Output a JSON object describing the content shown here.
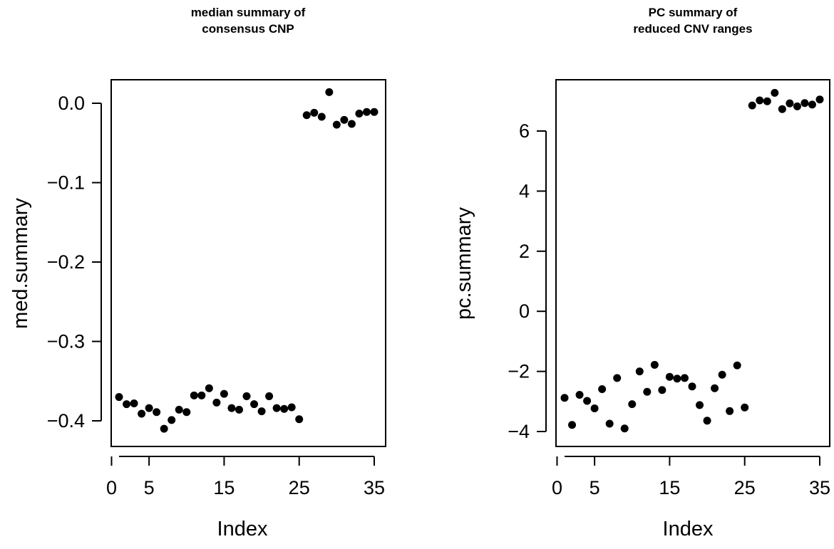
{
  "chart_data": [
    {
      "type": "scatter",
      "title_lines": [
        "median summary of",
        "consensus CNP"
      ],
      "xlabel": "Index",
      "ylabel": "med.summary",
      "xlim": [
        1,
        35
      ],
      "ylim": [
        -0.41,
        0.014
      ],
      "x_ticks": [
        0,
        5,
        15,
        25,
        35
      ],
      "y_ticks": [
        -0.4,
        -0.3,
        -0.2,
        -0.1,
        0.0
      ],
      "y_tick_labels": [
        "−0.4",
        "−0.3",
        "−0.2",
        "−0.1",
        "0.0"
      ],
      "grid": false,
      "x": [
        1,
        2,
        3,
        4,
        5,
        6,
        7,
        8,
        9,
        10,
        11,
        12,
        13,
        14,
        15,
        16,
        17,
        18,
        19,
        20,
        21,
        22,
        23,
        24,
        25,
        26,
        27,
        28,
        29,
        30,
        31,
        32,
        33,
        34,
        35
      ],
      "values": [
        -0.37,
        -0.379,
        -0.378,
        -0.391,
        -0.384,
        -0.389,
        -0.41,
        -0.399,
        -0.386,
        -0.389,
        -0.368,
        -0.368,
        -0.359,
        -0.377,
        -0.366,
        -0.384,
        -0.386,
        -0.369,
        -0.379,
        -0.388,
        -0.369,
        -0.384,
        -0.385,
        -0.383,
        -0.398,
        -0.015,
        -0.012,
        -0.017,
        0.014,
        -0.027,
        -0.021,
        -0.026,
        -0.013,
        -0.011,
        -0.011
      ]
    },
    {
      "type": "scatter",
      "title_lines": [
        "PC summary of",
        "reduced CNV ranges"
      ],
      "xlabel": "Index",
      "ylabel": "pc.summary",
      "xlim": [
        1,
        35
      ],
      "ylim": [
        -3.9,
        7.3
      ],
      "x_ticks": [
        0,
        5,
        15,
        25,
        35
      ],
      "y_ticks": [
        -4,
        -2,
        0,
        2,
        4,
        6
      ],
      "y_tick_labels": [
        "−4",
        "−2",
        "0",
        "2",
        "4",
        "6"
      ],
      "grid": false,
      "x": [
        1,
        2,
        3,
        4,
        5,
        6,
        7,
        8,
        9,
        10,
        11,
        12,
        13,
        14,
        15,
        16,
        17,
        18,
        19,
        20,
        21,
        22,
        23,
        24,
        25,
        26,
        27,
        28,
        29,
        30,
        31,
        32,
        33,
        34,
        35
      ],
      "values": [
        -2.88,
        -3.78,
        -2.78,
        -2.98,
        -3.23,
        -2.59,
        -3.74,
        -2.22,
        -3.9,
        -3.09,
        -2.0,
        -2.68,
        -1.78,
        -2.62,
        -2.18,
        -2.24,
        -2.22,
        -2.5,
        -3.12,
        -3.64,
        -2.56,
        -2.11,
        -3.32,
        -1.8,
        -3.2,
        6.85,
        7.02,
        6.99,
        7.27,
        6.73,
        6.92,
        6.82,
        6.93,
        6.88,
        7.05
      ]
    }
  ]
}
